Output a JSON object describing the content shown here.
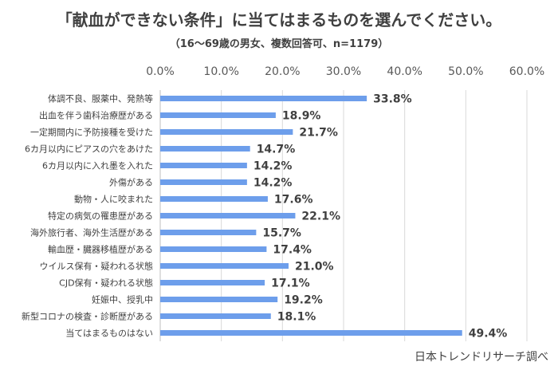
{
  "chart_data": {
    "type": "bar",
    "orientation": "horizontal",
    "title": "「献血ができない条件」に当てはまるものを選んでください。",
    "subtitle": "（16～69歳の男女、複数回答可、n=1179）",
    "categories": [
      "体調不良、服薬中、発熱等",
      "出血を伴う歯科治療歴がある",
      "一定期間内に予防接種を受けた",
      "6カ月以内にピアスの穴をあけた",
      "6カ月以内に入れ墨を入れた",
      "外傷がある",
      "動物・人に咬まれた",
      "特定の病気の罹患歴がある",
      "海外旅行者、海外生活歴がある",
      "輸血歴・臓器移植歴がある",
      "ウイルス保有・疑われる状態",
      "CJD保有・疑われる状態",
      "妊娠中、授乳中",
      "新型コロナの検査・診断歴がある",
      "当てはまるものはない"
    ],
    "values": [
      33.8,
      18.9,
      21.7,
      14.7,
      14.2,
      14.2,
      17.6,
      22.1,
      15.7,
      17.4,
      21.0,
      17.1,
      19.2,
      18.1,
      49.4
    ],
    "value_labels": [
      "33.8%",
      "18.9%",
      "21.7%",
      "14.7%",
      "14.2%",
      "14.2%",
      "17.6%",
      "22.1%",
      "15.7%",
      "17.4%",
      "21.0%",
      "17.1%",
      "19.2%",
      "18.1%",
      "49.4%"
    ],
    "xlim": [
      0,
      60
    ],
    "x_ticks": [
      0,
      10,
      20,
      30,
      40,
      50,
      60
    ],
    "x_tick_labels": [
      "0.0%",
      "10.0%",
      "20.0%",
      "30.0%",
      "40.0%",
      "50.0%",
      "60.0%"
    ],
    "x_axis_position": "top",
    "grid": true,
    "bar_color": "#6D9EEB",
    "grid_color": "#D9D9D9"
  },
  "source": "日本トレンドリサーチ調べ"
}
